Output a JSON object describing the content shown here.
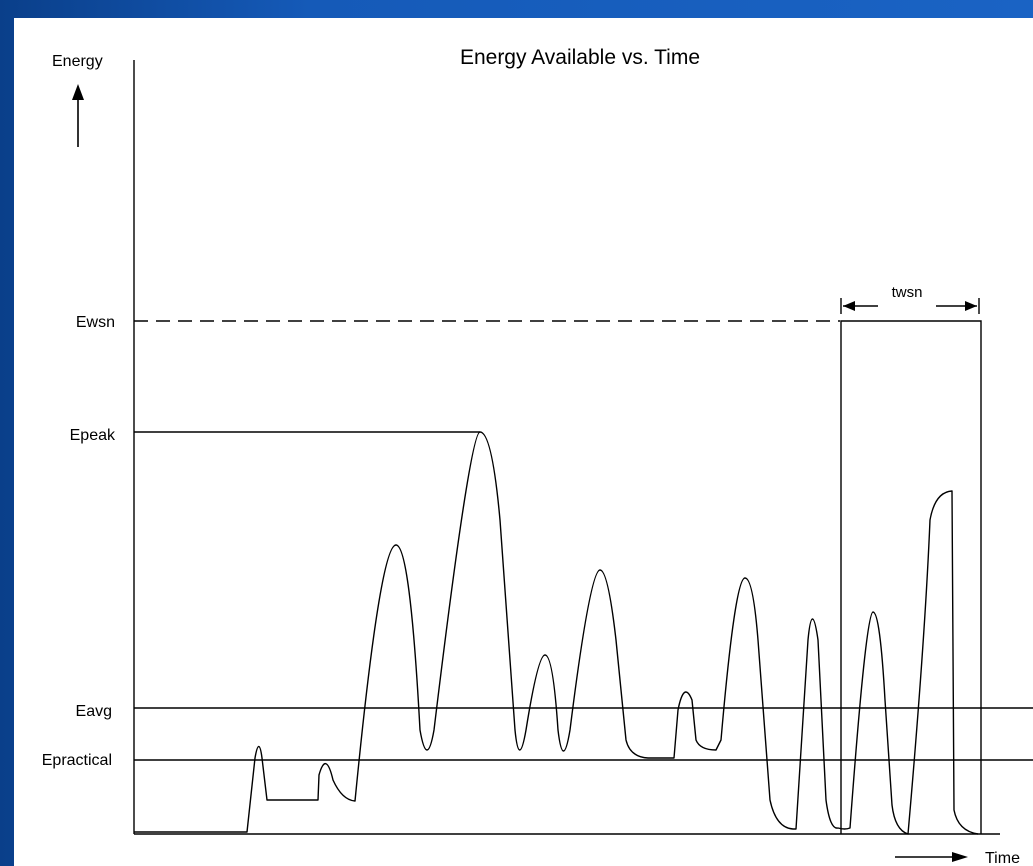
{
  "title": "Energy Available vs. Time",
  "y_axis_label": "Energy",
  "x_axis_label": "Time",
  "levels": {
    "ewsn": "Ewsn",
    "epeak": "Epeak",
    "eavg": "Eavg",
    "epractical": "Epractical"
  },
  "interval_label": "twsn",
  "colors": {
    "frame": "#155ab8",
    "background": "#ffffff",
    "line": "#000000"
  }
}
